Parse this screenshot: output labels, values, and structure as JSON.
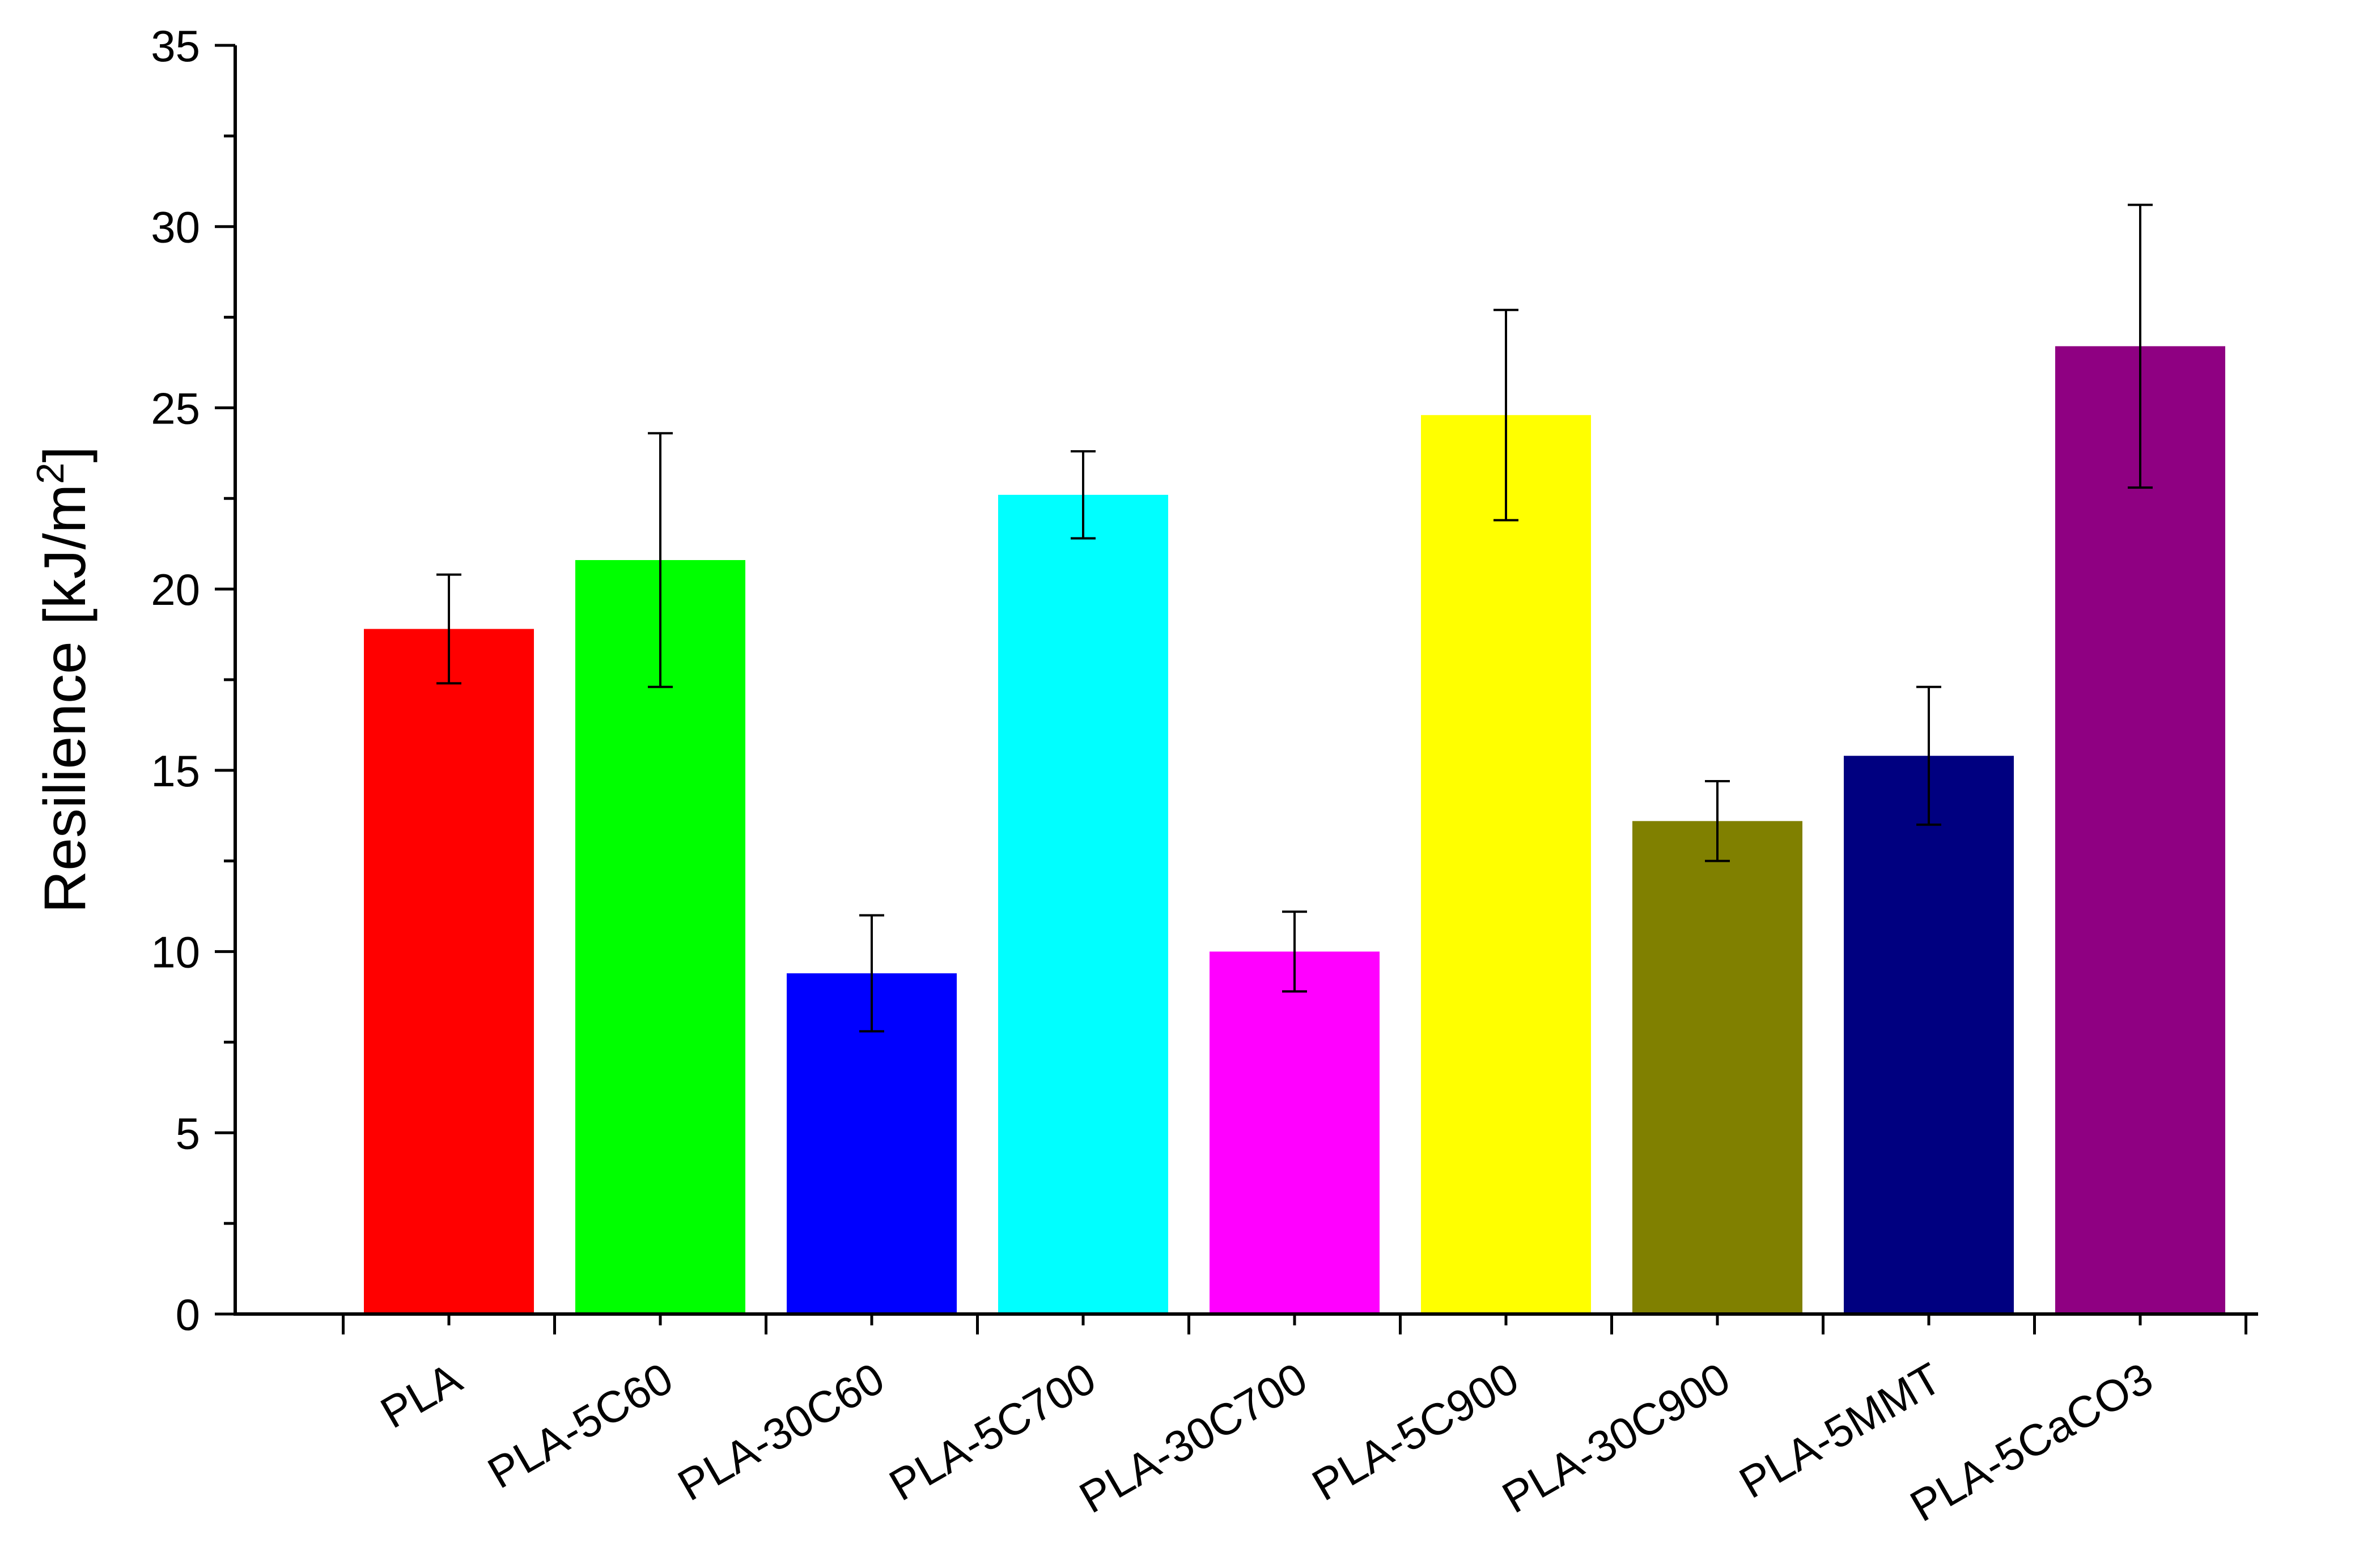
{
  "chart_data": {
    "type": "bar",
    "title": "",
    "xlabel": "",
    "ylabel": {
      "main": "Resilience [kJ/m",
      "sup": "2",
      "close": "]"
    },
    "ylim": [
      0,
      35
    ],
    "yticks": [
      "0",
      "5",
      "10",
      "15",
      "20",
      "25",
      "30",
      "35"
    ],
    "grid": false,
    "legend": "none",
    "categories": [
      "PLA",
      "PLA-5C60",
      "PLA-30C60",
      "PLA-5C700",
      "PLA-30C700",
      "PLA-5C900",
      "PLA-30C900",
      "PLA-5MMT",
      "PLA-5CaCO3"
    ],
    "values": [
      18.9,
      20.8,
      9.4,
      22.6,
      10.0,
      24.8,
      13.6,
      15.4,
      26.7
    ],
    "errors": [
      1.5,
      3.5,
      1.6,
      1.2,
      1.1,
      2.9,
      1.1,
      1.9,
      3.9
    ],
    "colors": [
      "#ff0000",
      "#00ff00",
      "#0000ff",
      "#00ffff",
      "#ff00ff",
      "#ffff00",
      "#808000",
      "#000080",
      "#8f0082"
    ]
  }
}
